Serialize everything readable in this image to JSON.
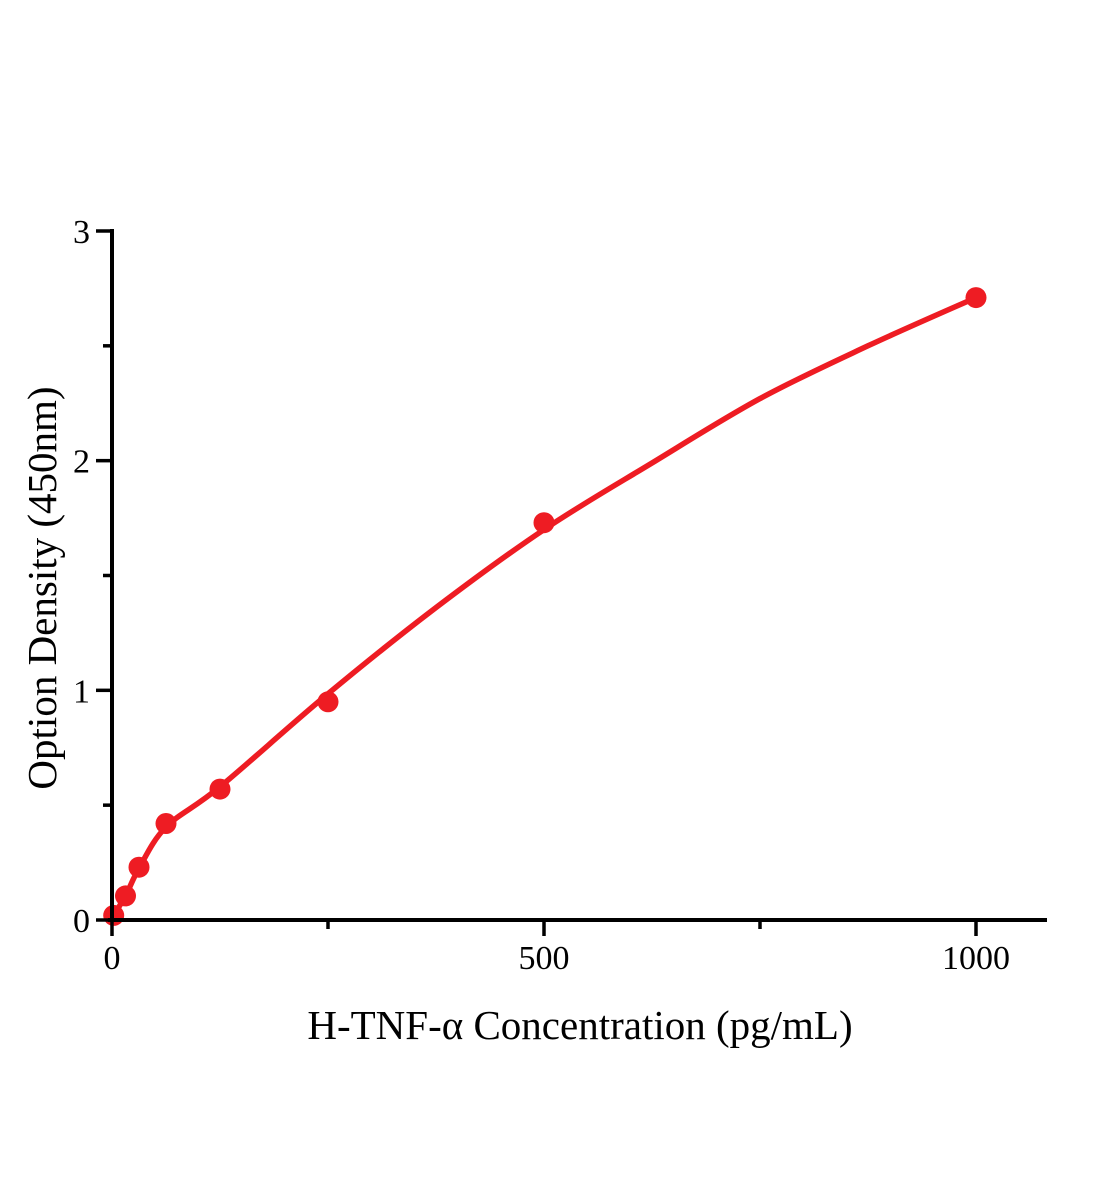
{
  "figure": {
    "background": "#ffffff",
    "axis_color": "#000000",
    "accent_color": "#ee1c23"
  },
  "chart_data": {
    "type": "scatter",
    "title": "",
    "xlabel": "H-TNF-α Concentration (pg/mL)",
    "ylabel": "Option Density (450nm)",
    "xlim": [
      0,
      1082
    ],
    "ylim": [
      0,
      3
    ],
    "grid": false,
    "legend": "none",
    "x_ticks": {
      "major": [
        0,
        500,
        1000
      ],
      "minor": [
        250,
        750
      ],
      "labels": [
        "0",
        "500",
        "1000"
      ]
    },
    "y_ticks": {
      "major": [
        0,
        1,
        2,
        3
      ],
      "minor": [
        0.5,
        1.5,
        2.5
      ],
      "labels": [
        "0",
        "1",
        "2",
        "3"
      ]
    },
    "series": [
      {
        "name": "standard-points",
        "type": "scatter",
        "color": "#ee1c23",
        "x": [
          2,
          15.6,
          31.2,
          62.5,
          125,
          250,
          500,
          1000
        ],
        "y": [
          0.02,
          0.105,
          0.23,
          0.42,
          0.57,
          0.95,
          1.73,
          2.71
        ]
      },
      {
        "name": "fitted-curve",
        "type": "line",
        "color": "#ee1c23",
        "x": [
          0,
          15.6,
          31.2,
          62.5,
          125,
          250,
          375,
          500,
          625,
          750,
          875,
          1000
        ],
        "y": [
          0.01,
          0.105,
          0.225,
          0.405,
          0.58,
          0.985,
          1.36,
          1.7,
          1.99,
          2.27,
          2.5,
          2.71
        ]
      }
    ]
  }
}
